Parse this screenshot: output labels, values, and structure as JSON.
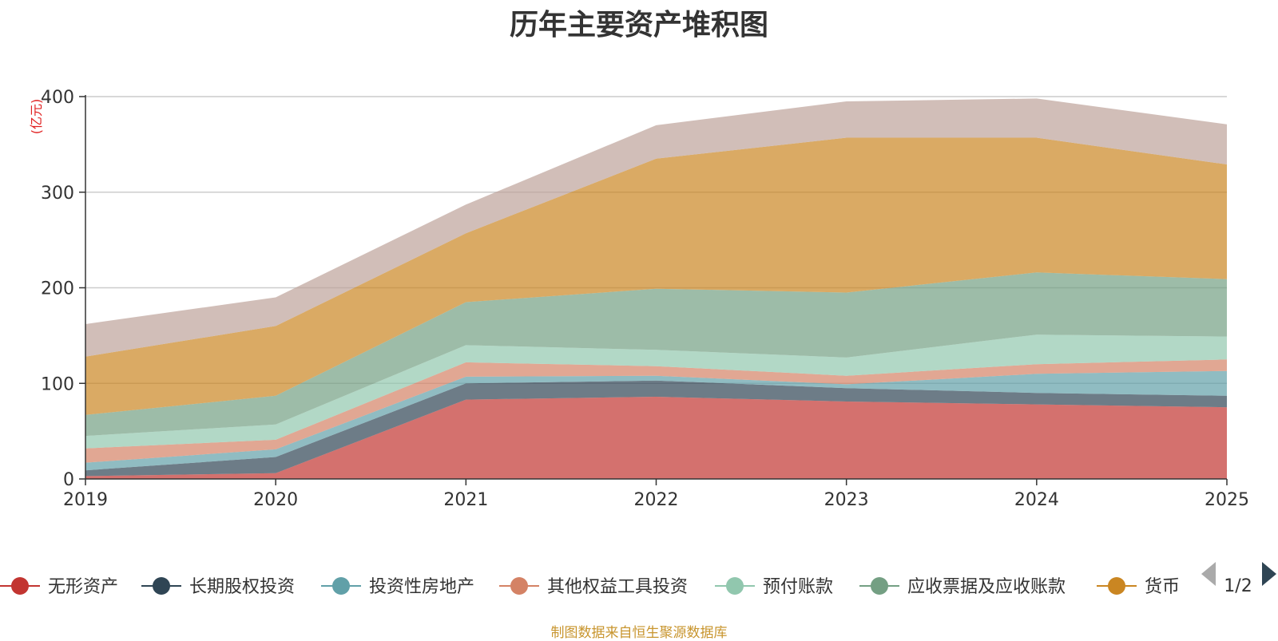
{
  "chart_data": {
    "type": "area",
    "stacked": true,
    "title": "历年主要资产堆积图",
    "ylabel": "(亿元)",
    "x": [
      "2019",
      "2020",
      "2021",
      "2022",
      "2023",
      "2024",
      "2025"
    ],
    "ylim": [
      0,
      400
    ],
    "yticks": [
      0,
      100,
      200,
      300,
      400
    ],
    "grid": true,
    "legend_position": "bottom",
    "legend_page": "1/2",
    "series": [
      {
        "name": "无形资产",
        "color": "#c23531",
        "values": [
          3,
          6,
          83,
          86,
          81,
          78,
          75
        ]
      },
      {
        "name": "长期股权投资",
        "color": "#2f4554",
        "values": [
          6,
          17,
          17,
          17,
          14,
          12,
          12
        ]
      },
      {
        "name": "投资性房地产",
        "color": "#61a0a8",
        "values": [
          8,
          8,
          7,
          5,
          4,
          20,
          26
        ]
      },
      {
        "name": "其他权益工具投资",
        "color": "#d48265",
        "values": [
          15,
          10,
          15,
          10,
          9,
          10,
          12
        ]
      },
      {
        "name": "预付账款",
        "color": "#91c7ae",
        "values": [
          13,
          16,
          18,
          17,
          19,
          31,
          24
        ]
      },
      {
        "name": "应收票据及应收账款",
        "color": "#749f83",
        "values": [
          22,
          30,
          45,
          64,
          68,
          65,
          60
        ]
      },
      {
        "name": "货币",
        "color": "#ca8622",
        "values": [
          61,
          73,
          72,
          136,
          162,
          141,
          120
        ]
      },
      {
        "name": "",
        "color": "#bda29a",
        "values": [
          34,
          30,
          30,
          35,
          38,
          41,
          42
        ]
      }
    ]
  },
  "source": "制图数据来自恒生聚源数据库"
}
